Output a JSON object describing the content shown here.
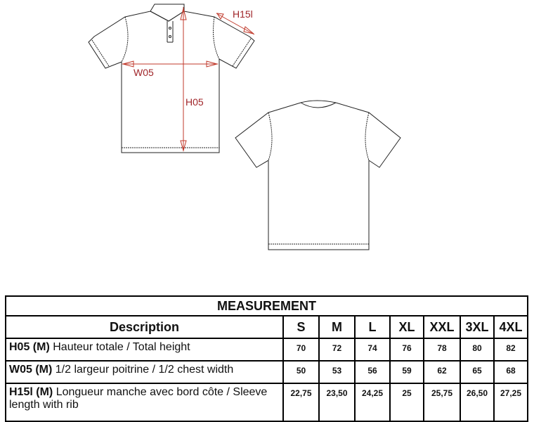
{
  "diagram": {
    "labels": {
      "height": "H05",
      "width": "W05",
      "sleeve": "H15l"
    },
    "measure_color": "#a0262a"
  },
  "table": {
    "title": "MEASUREMENT",
    "description_header": "Description",
    "sizes": [
      "S",
      "M",
      "L",
      "XL",
      "XXL",
      "3XL",
      "4XL"
    ],
    "rows": [
      {
        "code": "H05 (M)",
        "text": "Hauteur totale / Total height",
        "values": [
          "70",
          "72",
          "74",
          "76",
          "78",
          "80",
          "82"
        ]
      },
      {
        "code": "W05 (M)",
        "text": "1/2 largeur poitrine / 1/2 chest width",
        "values": [
          "50",
          "53",
          "56",
          "59",
          "62",
          "65",
          "68"
        ]
      },
      {
        "code": "H15l (M)",
        "text": "Longueur manche avec bord côte / Sleeve length with rib",
        "values": [
          "22,75",
          "23,50",
          "24,25",
          "25",
          "25,75",
          "26,50",
          "27,25"
        ]
      }
    ]
  }
}
